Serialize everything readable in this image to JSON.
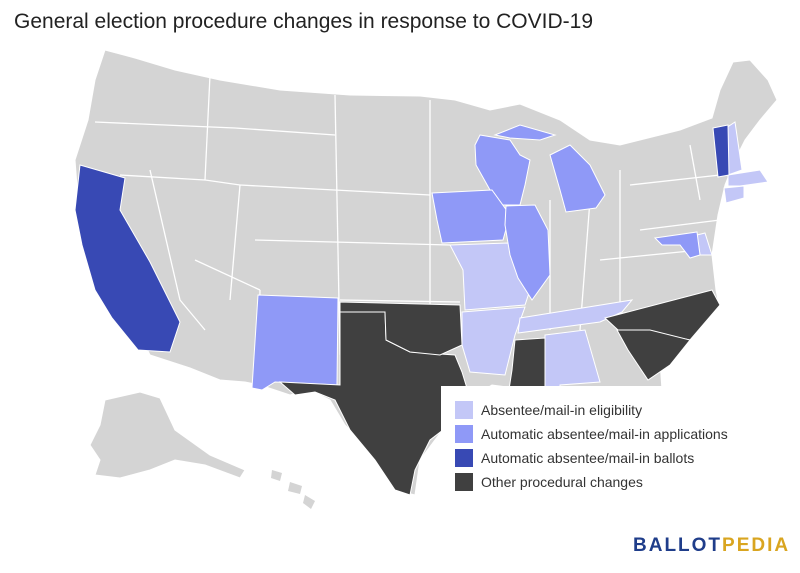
{
  "title": "General election procedure changes in response to COVID-19",
  "legend": [
    {
      "label": "Absentee/mail-in eligibility",
      "color": "#c3c7f7"
    },
    {
      "label": "Automatic absentee/mail-in applications",
      "color": "#8f99f7"
    },
    {
      "label": "Automatic absentee/mail-in ballots",
      "color": "#3849b4"
    },
    {
      "label": "Other procedural changes",
      "color": "#404040"
    }
  ],
  "default_color": "#d4d4d4",
  "states": {
    "absentee_mail_in_eligibility": [
      "NH",
      "MA",
      "CT",
      "DE",
      "MO",
      "AR",
      "TN",
      "AL"
    ],
    "automatic_absentee_mail_in_applications": [
      "WI",
      "MI",
      "IA",
      "IL",
      "NM",
      "MD"
    ],
    "automatic_absentee_mail_in_ballots": [
      "CA",
      "VT"
    ],
    "other_procedural_changes": [
      "TX",
      "OK",
      "MS",
      "NC",
      "SC"
    ]
  },
  "logo": {
    "part1": "BALLOT",
    "part2": "PEDIA"
  }
}
